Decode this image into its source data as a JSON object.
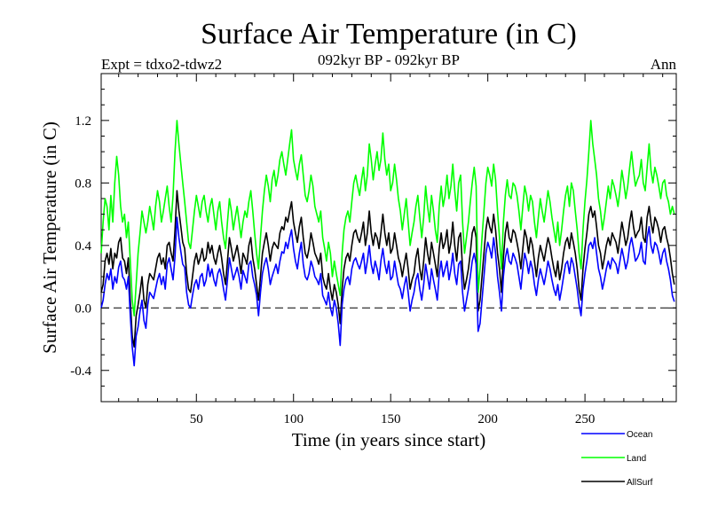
{
  "chart_data": {
    "type": "line",
    "title": "Surface Air Temperature (in C)",
    "subtitle_left": "Expt = tdxo2-tdwz2",
    "subtitle_center": "092kyr BP - 092kyr BP",
    "subtitle_right": "Ann",
    "xlabel": "Time (in years since start)",
    "ylabel": "Surface Air Temperature (in C)",
    "xlim": [
      1,
      297
    ],
    "ylim": [
      -0.6,
      1.5
    ],
    "x_ticks": [
      50,
      100,
      150,
      200,
      250
    ],
    "x_tick_labels": [
      "50",
      "100",
      "150",
      "200",
      "250"
    ],
    "y_ticks": [
      -0.4,
      0.0,
      0.4,
      0.8,
      1.2
    ],
    "y_tick_labels": [
      "-0.4",
      "0.0",
      "0.4",
      "0.8",
      "1.2"
    ],
    "zero_line": true,
    "legend_position": "bottom-right",
    "series": [
      {
        "name": "Ocean",
        "color": "#0000ff",
        "values": [
          0.0,
          0.05,
          0.15,
          0.22,
          0.18,
          0.25,
          0.12,
          0.2,
          0.16,
          0.26,
          0.3,
          0.2,
          0.18,
          0.12,
          0.2,
          -0.05,
          -0.25,
          -0.37,
          -0.18,
          -0.12,
          -0.02,
          0.05,
          -0.08,
          -0.13,
          0.02,
          0.1,
          0.08,
          0.06,
          0.12,
          0.18,
          0.22,
          0.15,
          0.2,
          0.12,
          0.28,
          0.32,
          0.25,
          0.18,
          0.33,
          0.58,
          0.45,
          0.36,
          0.28,
          0.26,
          0.1,
          0.02,
          0.0,
          0.08,
          0.15,
          0.18,
          0.12,
          0.2,
          0.22,
          0.14,
          0.18,
          0.28,
          0.2,
          0.25,
          0.18,
          0.14,
          0.22,
          0.25,
          0.2,
          0.12,
          0.05,
          0.18,
          0.32,
          0.25,
          0.18,
          0.22,
          0.26,
          0.2,
          0.12,
          0.24,
          0.2,
          0.16,
          0.28,
          0.3,
          0.2,
          0.15,
          0.08,
          -0.05,
          0.1,
          0.22,
          0.28,
          0.32,
          0.25,
          0.15,
          0.2,
          0.24,
          0.28,
          0.22,
          0.3,
          0.36,
          0.35,
          0.42,
          0.38,
          0.45,
          0.5,
          0.38,
          0.3,
          0.25,
          0.35,
          0.42,
          0.28,
          0.2,
          0.18,
          0.22,
          0.3,
          0.26,
          0.2,
          0.18,
          0.15,
          0.22,
          0.08,
          0.05,
          0.02,
          0.1,
          0.0,
          -0.05,
          0.05,
          0.0,
          -0.1,
          -0.24,
          0.02,
          0.12,
          0.18,
          0.2,
          0.15,
          0.25,
          0.3,
          0.32,
          0.28,
          0.25,
          0.3,
          0.35,
          0.22,
          0.3,
          0.4,
          0.28,
          0.22,
          0.3,
          0.25,
          0.18,
          0.3,
          0.38,
          0.28,
          0.22,
          0.3,
          0.18,
          0.2,
          0.3,
          0.22,
          0.15,
          0.12,
          0.06,
          0.14,
          0.2,
          0.1,
          -0.02,
          0.05,
          0.1,
          0.18,
          0.22,
          0.12,
          0.05,
          0.15,
          0.28,
          0.2,
          0.12,
          0.25,
          0.18,
          0.12,
          0.05,
          0.22,
          0.3,
          0.2,
          0.25,
          0.3,
          0.18,
          0.25,
          0.35,
          0.22,
          0.15,
          0.28,
          0.3,
          0.1,
          -0.02,
          0.05,
          0.12,
          0.2,
          0.3,
          0.35,
          0.28,
          -0.15,
          -0.1,
          0.05,
          0.2,
          0.35,
          0.42,
          0.38,
          0.32,
          0.45,
          0.35,
          0.2,
          0.1,
          -0.02,
          0.2,
          0.32,
          0.38,
          0.3,
          0.28,
          0.35,
          0.32,
          0.28,
          0.2,
          0.12,
          0.25,
          0.35,
          0.3,
          0.22,
          0.3,
          0.25,
          0.15,
          0.08,
          0.18,
          0.25,
          0.2,
          0.15,
          0.22,
          0.3,
          0.25,
          0.18,
          0.12,
          0.08,
          0.15,
          0.05,
          0.12,
          0.2,
          0.28,
          0.3,
          0.22,
          0.32,
          0.28,
          0.2,
          0.12,
          0.02,
          -0.05,
          0.12,
          0.22,
          0.3,
          0.4,
          0.42,
          0.38,
          0.45,
          0.35,
          0.25,
          0.2,
          0.12,
          0.18,
          0.25,
          0.3,
          0.25,
          0.32,
          0.3,
          0.28,
          0.22,
          0.3,
          0.38,
          0.32,
          0.25,
          0.3,
          0.4,
          0.45,
          0.38,
          0.3,
          0.32,
          0.35,
          0.42,
          0.3,
          0.28,
          0.45,
          0.52,
          0.4,
          0.35,
          0.42,
          0.4,
          0.35,
          0.28,
          0.35,
          0.38,
          0.3,
          0.25,
          0.18,
          0.08,
          0.04
        ]
      },
      {
        "name": "Land",
        "color": "#00ff00",
        "values": [
          0.35,
          0.55,
          0.7,
          0.65,
          0.5,
          0.72,
          0.55,
          0.8,
          0.97,
          0.85,
          0.65,
          0.55,
          0.6,
          0.45,
          0.55,
          0.3,
          0.05,
          -0.05,
          0.15,
          0.35,
          0.48,
          0.62,
          0.55,
          0.48,
          0.55,
          0.65,
          0.58,
          0.5,
          0.65,
          0.75,
          0.68,
          0.55,
          0.62,
          0.7,
          0.78,
          0.65,
          0.55,
          0.72,
          1.0,
          1.2,
          1.05,
          0.92,
          0.8,
          0.68,
          0.55,
          0.42,
          0.38,
          0.5,
          0.62,
          0.72,
          0.65,
          0.58,
          0.68,
          0.72,
          0.62,
          0.55,
          0.65,
          0.7,
          0.6,
          0.5,
          0.62,
          0.68,
          0.55,
          0.45,
          0.38,
          0.55,
          0.7,
          0.62,
          0.5,
          0.58,
          0.65,
          0.55,
          0.45,
          0.55,
          0.62,
          0.58,
          0.68,
          0.75,
          0.62,
          0.48,
          0.35,
          0.25,
          0.45,
          0.62,
          0.75,
          0.85,
          0.78,
          0.68,
          0.82,
          0.88,
          0.78,
          0.85,
          0.95,
          1.0,
          0.92,
          0.85,
          0.95,
          1.05,
          1.14,
          0.95,
          0.88,
          0.82,
          0.92,
          0.98,
          0.85,
          0.72,
          0.68,
          0.75,
          0.85,
          0.78,
          0.65,
          0.6,
          0.55,
          0.62,
          0.45,
          0.38,
          0.3,
          0.42,
          0.35,
          0.2,
          0.3,
          0.22,
          0.15,
          0.08,
          0.35,
          0.5,
          0.58,
          0.62,
          0.55,
          0.68,
          0.8,
          0.85,
          0.78,
          0.72,
          0.82,
          0.9,
          0.75,
          0.85,
          1.05,
          0.95,
          0.82,
          0.92,
          1.0,
          0.88,
          0.95,
          1.12,
          0.95,
          0.85,
          0.92,
          0.75,
          0.8,
          0.92,
          0.82,
          0.7,
          0.62,
          0.5,
          0.6,
          0.7,
          0.55,
          0.4,
          0.48,
          0.55,
          0.65,
          0.72,
          0.58,
          0.45,
          0.58,
          0.78,
          0.65,
          0.55,
          0.72,
          0.62,
          0.5,
          0.42,
          0.65,
          0.78,
          0.65,
          0.72,
          0.85,
          0.7,
          0.78,
          0.92,
          0.75,
          0.62,
          0.8,
          0.85,
          0.55,
          0.35,
          0.45,
          0.55,
          0.68,
          0.8,
          0.9,
          0.78,
          0.1,
          0.25,
          0.45,
          0.62,
          0.8,
          0.9,
          0.85,
          0.78,
          0.92,
          0.82,
          0.62,
          0.45,
          0.25,
          0.55,
          0.72,
          0.82,
          0.72,
          0.7,
          0.8,
          0.78,
          0.72,
          0.62,
          0.5,
          0.65,
          0.78,
          0.72,
          0.62,
          0.72,
          0.68,
          0.55,
          0.45,
          0.58,
          0.7,
          0.62,
          0.55,
          0.65,
          0.75,
          0.68,
          0.58,
          0.5,
          0.42,
          0.55,
          0.4,
          0.5,
          0.62,
          0.72,
          0.78,
          0.65,
          0.8,
          0.75,
          0.62,
          0.5,
          0.35,
          0.25,
          0.5,
          0.68,
          0.82,
          1.0,
          1.2,
          1.05,
          0.95,
          0.85,
          0.7,
          0.62,
          0.5,
          0.58,
          0.68,
          0.78,
          0.7,
          0.82,
          0.78,
          0.72,
          0.65,
          0.75,
          0.88,
          0.8,
          0.7,
          0.78,
          0.9,
          1.0,
          0.88,
          0.78,
          0.82,
          0.85,
          0.95,
          0.8,
          0.75,
          0.9,
          1.05,
          0.88,
          0.8,
          0.9,
          0.85,
          0.78,
          0.7,
          0.8,
          0.82,
          0.72,
          0.68,
          0.6,
          0.65,
          0.6
        ]
      },
      {
        "name": "AllSurf",
        "color": "#000000",
        "values": [
          0.1,
          0.15,
          0.3,
          0.35,
          0.28,
          0.38,
          0.25,
          0.35,
          0.32,
          0.42,
          0.45,
          0.32,
          0.3,
          0.22,
          0.32,
          0.05,
          -0.18,
          -0.25,
          -0.05,
          0.02,
          0.1,
          0.2,
          0.05,
          0.0,
          0.15,
          0.22,
          0.2,
          0.18,
          0.25,
          0.32,
          0.35,
          0.28,
          0.32,
          0.25,
          0.4,
          0.42,
          0.35,
          0.3,
          0.5,
          0.75,
          0.62,
          0.52,
          0.42,
          0.38,
          0.22,
          0.12,
          0.1,
          0.2,
          0.3,
          0.35,
          0.28,
          0.32,
          0.38,
          0.3,
          0.32,
          0.42,
          0.35,
          0.4,
          0.32,
          0.28,
          0.35,
          0.4,
          0.32,
          0.22,
          0.15,
          0.3,
          0.45,
          0.38,
          0.3,
          0.35,
          0.4,
          0.32,
          0.22,
          0.35,
          0.32,
          0.28,
          0.4,
          0.45,
          0.32,
          0.25,
          0.15,
          0.05,
          0.2,
          0.35,
          0.42,
          0.48,
          0.4,
          0.3,
          0.38,
          0.42,
          0.4,
          0.38,
          0.48,
          0.52,
          0.5,
          0.58,
          0.55,
          0.62,
          0.68,
          0.55,
          0.48,
          0.42,
          0.52,
          0.58,
          0.45,
          0.35,
          0.32,
          0.38,
          0.48,
          0.42,
          0.35,
          0.32,
          0.28,
          0.35,
          0.2,
          0.15,
          0.12,
          0.22,
          0.12,
          0.05,
          0.15,
          0.1,
          0.02,
          -0.1,
          0.12,
          0.25,
          0.32,
          0.35,
          0.3,
          0.4,
          0.48,
          0.5,
          0.45,
          0.42,
          0.48,
          0.55,
          0.4,
          0.48,
          0.62,
          0.48,
          0.4,
          0.48,
          0.45,
          0.38,
          0.48,
          0.6,
          0.48,
          0.4,
          0.48,
          0.35,
          0.38,
          0.48,
          0.4,
          0.32,
          0.28,
          0.2,
          0.28,
          0.35,
          0.25,
          0.12,
          0.18,
          0.22,
          0.32,
          0.38,
          0.25,
          0.18,
          0.3,
          0.45,
          0.35,
          0.28,
          0.42,
          0.35,
          0.28,
          0.2,
          0.38,
          0.48,
          0.38,
          0.42,
          0.5,
          0.35,
          0.42,
          0.55,
          0.4,
          0.3,
          0.45,
          0.48,
          0.25,
          0.12,
          0.18,
          0.25,
          0.35,
          0.48,
          0.52,
          0.45,
          -0.02,
          0.05,
          0.2,
          0.35,
          0.5,
          0.58,
          0.52,
          0.48,
          0.6,
          0.5,
          0.35,
          0.25,
          0.1,
          0.32,
          0.48,
          0.55,
          0.45,
          0.42,
          0.5,
          0.48,
          0.42,
          0.35,
          0.25,
          0.38,
          0.5,
          0.45,
          0.35,
          0.45,
          0.4,
          0.3,
          0.2,
          0.32,
          0.4,
          0.35,
          0.3,
          0.38,
          0.45,
          0.4,
          0.32,
          0.25,
          0.2,
          0.3,
          0.18,
          0.25,
          0.35,
          0.42,
          0.45,
          0.38,
          0.48,
          0.42,
          0.35,
          0.25,
          0.12,
          0.05,
          0.25,
          0.38,
          0.48,
          0.6,
          0.65,
          0.58,
          0.62,
          0.52,
          0.4,
          0.35,
          0.25,
          0.32,
          0.4,
          0.45,
          0.4,
          0.48,
          0.45,
          0.42,
          0.35,
          0.45,
          0.55,
          0.48,
          0.4,
          0.45,
          0.55,
          0.62,
          0.52,
          0.45,
          0.48,
          0.5,
          0.58,
          0.45,
          0.42,
          0.58,
          0.65,
          0.55,
          0.48,
          0.58,
          0.55,
          0.5,
          0.42,
          0.5,
          0.52,
          0.45,
          0.4,
          0.32,
          0.22,
          0.15
        ]
      }
    ]
  }
}
